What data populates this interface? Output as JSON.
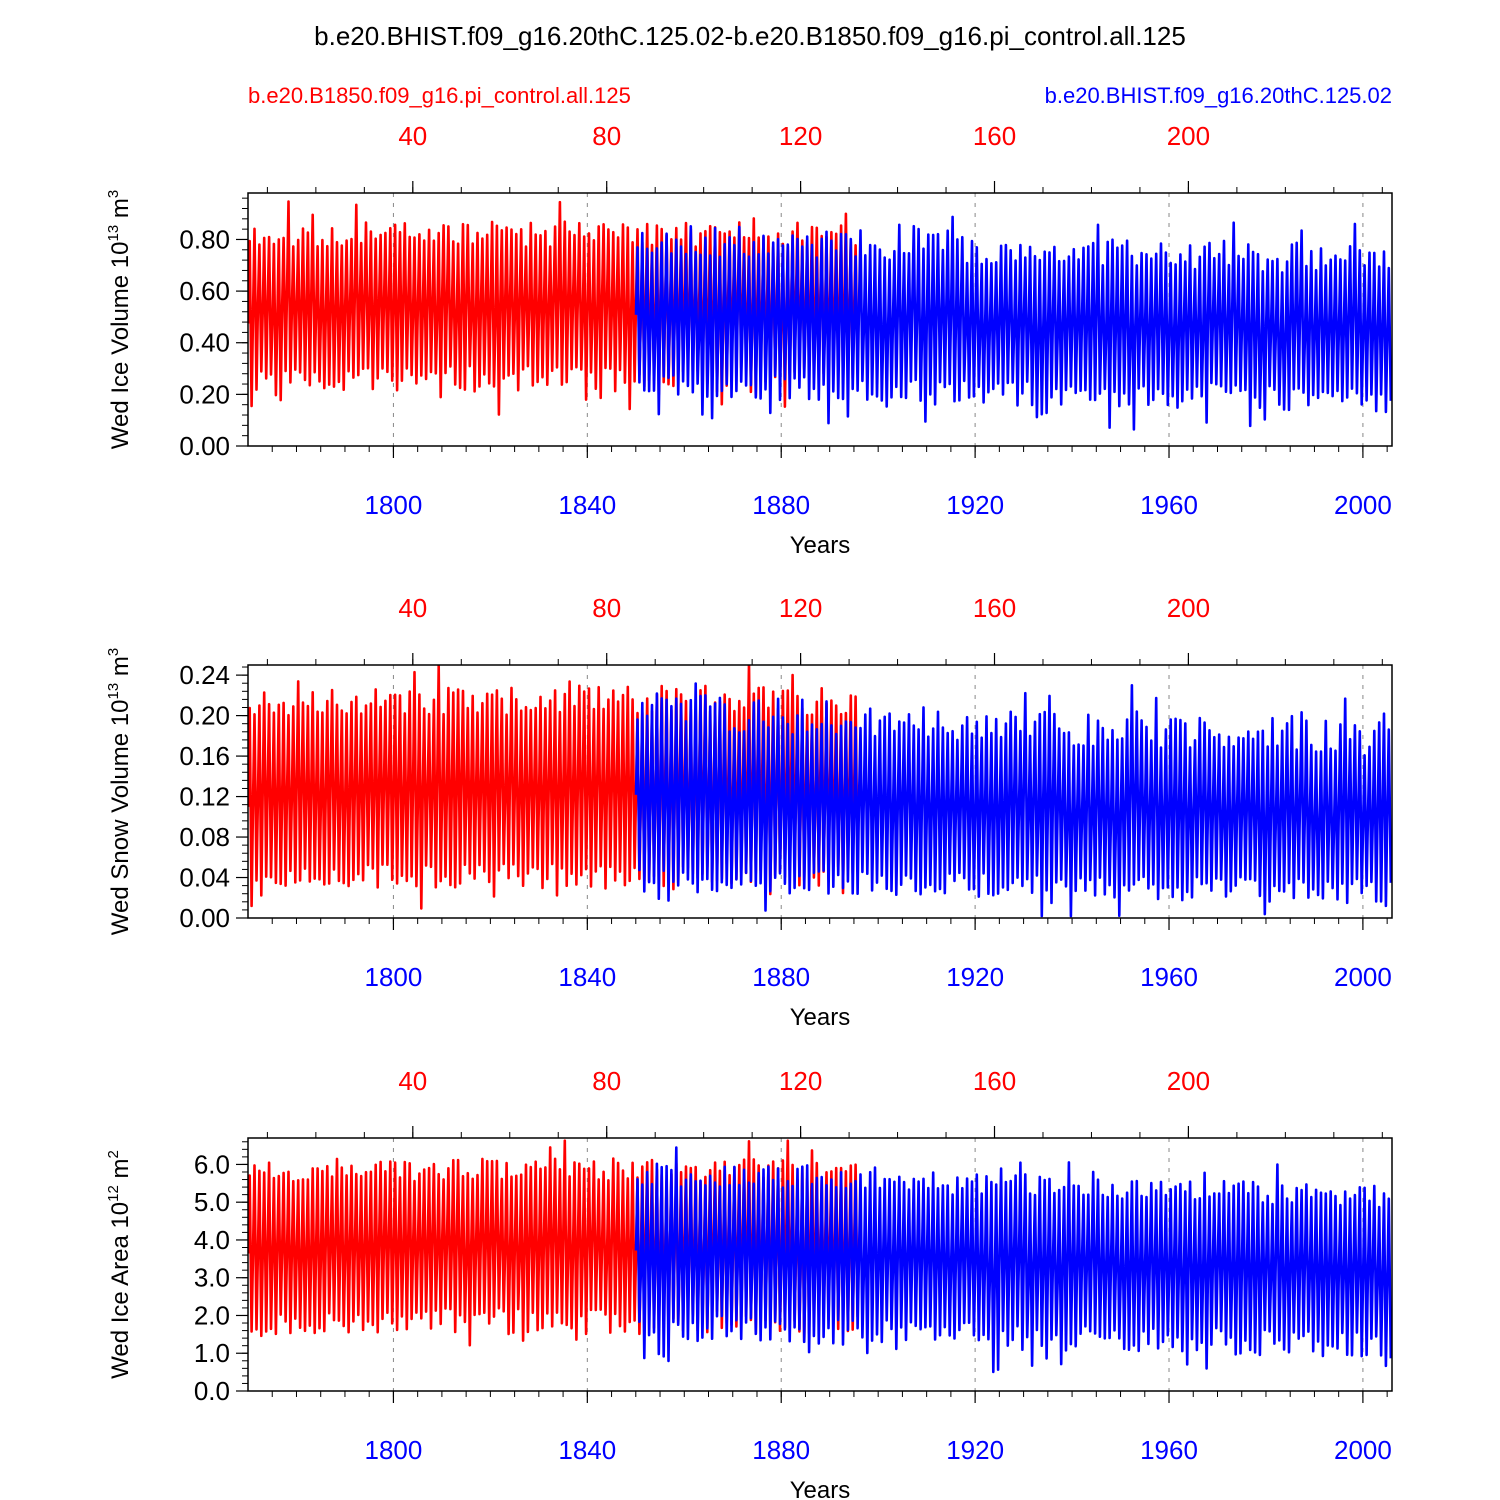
{
  "title": "b.e20.BHIST.f09_g16.20thC.125.02-b.e20.B1850.f09_g16.pi_control.all.125",
  "legend": {
    "control_label": "b.e20.B1850.f09_g16.pi_control.all.125",
    "hist_label": "b.e20.BHIST.f09_g16.20thC.125.02"
  },
  "colors": {
    "control": "#ff0000",
    "hist": "#0000ff",
    "axis": "#000000",
    "grid": "#888888"
  },
  "chart_data": [
    {
      "type": "line",
      "ylabel_main": "Wed Ice Volume 10",
      "ylabel_exp": "13",
      "ylabel_unit": " m",
      "ylabel_unit_exp": "3",
      "xlabel": "Years",
      "xlim": [
        1770,
        2006
      ],
      "ylim": [
        0,
        0.98
      ],
      "yticks": [
        0.0,
        0.2,
        0.4,
        0.6,
        0.8
      ],
      "ytick_labels": [
        "0.00",
        "0.20",
        "0.40",
        "0.60",
        "0.80"
      ],
      "bottom_ticks": [
        1800,
        1840,
        1880,
        1920,
        1960,
        2000
      ],
      "bottom_tick_labels": [
        "1800",
        "1840",
        "1880",
        "1920",
        "1960",
        "2000"
      ],
      "top_ticks": [
        40,
        80,
        120,
        160,
        200
      ],
      "top_tick_labels": [
        "40",
        "80",
        "120",
        "160",
        "200"
      ],
      "series": [
        {
          "name": "b.e20.B1850.f09_g16.pi_control.all.125",
          "color": "#ff0000",
          "start_year": 1770,
          "end_year": 1896,
          "seed": 11,
          "max_base": 0.82,
          "max_amp": 0.05,
          "min_base": 0.26,
          "min_amp": 0.05,
          "trend_max": 0.0,
          "trend_min": 0.0
        },
        {
          "name": "b.e20.BHIST.f09_g16.20thC.125.02",
          "color": "#0000ff",
          "start_year": 1850,
          "end_year": 2006,
          "seed": 23,
          "max_base": 0.8,
          "max_amp": 0.06,
          "min_base": 0.24,
          "min_amp": 0.05,
          "trend_max": -0.08,
          "trend_min": -0.06
        }
      ]
    },
    {
      "type": "line",
      "ylabel_main": "Wed Snow Volume 10",
      "ylabel_exp": "13",
      "ylabel_unit": " m",
      "ylabel_unit_exp": "3",
      "xlabel": "Years",
      "xlim": [
        1770,
        2006
      ],
      "ylim": [
        0,
        0.25
      ],
      "yticks": [
        0.0,
        0.04,
        0.08,
        0.12,
        0.16,
        0.2,
        0.24
      ],
      "ytick_labels": [
        "0.00",
        "0.04",
        "0.08",
        "0.12",
        "0.16",
        "0.20",
        "0.24"
      ],
      "bottom_ticks": [
        1800,
        1840,
        1880,
        1920,
        1960,
        2000
      ],
      "bottom_tick_labels": [
        "1800",
        "1840",
        "1880",
        "1920",
        "1960",
        "2000"
      ],
      "top_ticks": [
        40,
        80,
        120,
        160,
        200
      ],
      "top_tick_labels": [
        "40",
        "80",
        "120",
        "160",
        "200"
      ],
      "series": [
        {
          "name": "b.e20.B1850.f09_g16.pi_control.all.125",
          "color": "#ff0000",
          "start_year": 1770,
          "end_year": 1896,
          "seed": 37,
          "max_base": 0.215,
          "max_amp": 0.015,
          "min_base": 0.042,
          "min_amp": 0.012,
          "trend_max": 0.0,
          "trend_min": 0.0
        },
        {
          "name": "b.e20.BHIST.f09_g16.20thC.125.02",
          "color": "#0000ff",
          "start_year": 1850,
          "end_year": 2006,
          "seed": 41,
          "max_base": 0.205,
          "max_amp": 0.018,
          "min_base": 0.038,
          "min_amp": 0.012,
          "trend_max": -0.03,
          "trend_min": -0.012
        }
      ]
    },
    {
      "type": "line",
      "ylabel_main": "Wed Ice Area 10",
      "ylabel_exp": "12",
      "ylabel_unit": " m",
      "ylabel_unit_exp": "2",
      "xlabel": "Years",
      "xlim": [
        1770,
        2006
      ],
      "ylim": [
        0,
        6.7
      ],
      "yticks": [
        0,
        1,
        2,
        3,
        4,
        5,
        6
      ],
      "ytick_labels": [
        "0.0",
        "1.0",
        "2.0",
        "3.0",
        "4.0",
        "5.0",
        "6.0"
      ],
      "bottom_ticks": [
        1800,
        1840,
        1880,
        1920,
        1960,
        2000
      ],
      "bottom_tick_labels": [
        "1800",
        "1840",
        "1880",
        "1920",
        "1960",
        "2000"
      ],
      "top_ticks": [
        40,
        80,
        120,
        160,
        200
      ],
      "top_tick_labels": [
        "40",
        "80",
        "120",
        "160",
        "200"
      ],
      "series": [
        {
          "name": "b.e20.B1850.f09_g16.pi_control.all.125",
          "color": "#ff0000",
          "start_year": 1770,
          "end_year": 1896,
          "seed": 53,
          "max_base": 5.85,
          "max_amp": 0.3,
          "min_base": 1.85,
          "min_amp": 0.35,
          "trend_max": 0.0,
          "trend_min": 0.0
        },
        {
          "name": "b.e20.BHIST.f09_g16.20thC.125.02",
          "color": "#0000ff",
          "start_year": 1850,
          "end_year": 2006,
          "seed": 67,
          "max_base": 5.75,
          "max_amp": 0.3,
          "min_base": 1.7,
          "min_amp": 0.35,
          "trend_max": -0.6,
          "trend_min": -0.5
        }
      ]
    }
  ]
}
